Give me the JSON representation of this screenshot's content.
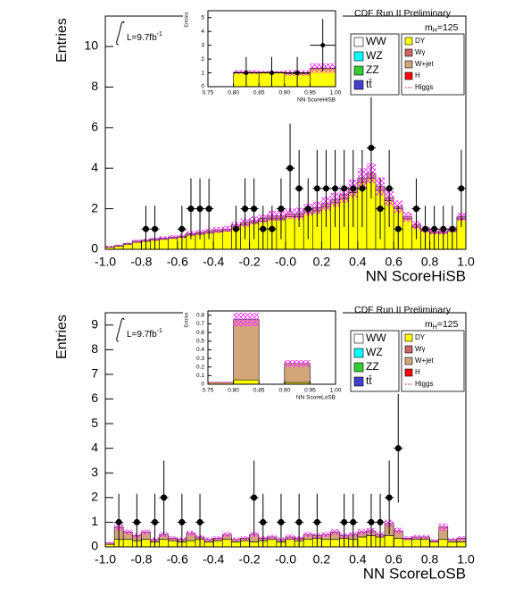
{
  "chart_data": [
    {
      "type": "histogram",
      "annotation": "CDF Run II Preliminary",
      "mass_label": {
        "base": "m",
        "sub": "H",
        "rest": "=125"
      },
      "lumi_label": {
        "text": "L=9.7fb",
        "sup": "-1"
      },
      "xlabel": "NN ScoreHiSB",
      "ylabel": "Entries",
      "xlim": [
        -1,
        1
      ],
      "ylim": [
        0,
        11.5
      ],
      "xticks": [
        {
          "value": -1,
          "label": "-1.0"
        },
        -0.8,
        -0.6,
        -0.4,
        -0.2,
        {
          "value": 0,
          "label": "-0.0"
        },
        0.2,
        0.4,
        0.6,
        0.8,
        {
          "value": 1,
          "label": "1.0"
        }
      ],
      "yticks": [
        0,
        2,
        4,
        6,
        8,
        10
      ],
      "bins": [
        -1,
        -0.95,
        -0.9,
        -0.85,
        -0.8,
        -0.75,
        -0.7,
        -0.65,
        -0.6,
        -0.55,
        -0.5,
        -0.45,
        -0.4,
        -0.35,
        -0.3,
        -0.25,
        -0.2,
        -0.15,
        -0.1,
        -0.05,
        0,
        0.05,
        0.1,
        0.15,
        0.2,
        0.25,
        0.3,
        0.35,
        0.4,
        0.45,
        0.5,
        0.55,
        0.6,
        0.65,
        0.7,
        0.75,
        0.8,
        0.85,
        0.9,
        0.95,
        1
      ],
      "series": [
        {
          "name": "DY",
          "color": "#ffff00",
          "values": [
            0.1,
            0.15,
            0.25,
            0.35,
            0.4,
            0.45,
            0.5,
            0.55,
            0.6,
            0.7,
            0.75,
            0.8,
            0.85,
            0.9,
            1.1,
            1.2,
            1.3,
            1.4,
            1.5,
            1.5,
            1.6,
            1.6,
            1.8,
            1.9,
            2.1,
            2.3,
            2.5,
            2.8,
            3.3,
            3.5,
            2.9,
            2.4,
            2.0,
            1.5,
            1.1,
            0.9,
            0.8,
            0.8,
            0.9,
            1.5
          ]
        },
        {
          "name": "W+jet",
          "color": "#d2a679",
          "values": [
            0.02,
            0.03,
            0.03,
            0.05,
            0.05,
            0.05,
            0.05,
            0.05,
            0.05,
            0.08,
            0.08,
            0.1,
            0.1,
            0.1,
            0.1,
            0.12,
            0.12,
            0.12,
            0.15,
            0.15,
            0.15,
            0.15,
            0.15,
            0.15,
            0.15,
            0.15,
            0.2,
            0.2,
            0.2,
            0.25,
            0.2,
            0.15,
            0.1,
            0.1,
            0.1,
            0.08,
            0.08,
            0.08,
            0.08,
            0.1
          ]
        }
      ],
      "uncertainty": [
        0.05,
        0.05,
        0.05,
        0.08,
        0.08,
        0.08,
        0.1,
        0.1,
        0.1,
        0.12,
        0.12,
        0.12,
        0.15,
        0.15,
        0.15,
        0.2,
        0.2,
        0.2,
        0.25,
        0.25,
        0.25,
        0.3,
        0.3,
        0.3,
        0.35,
        0.35,
        0.4,
        0.45,
        0.5,
        0.5,
        0.45,
        0.4,
        0.3,
        0.25,
        0.2,
        0.15,
        0.15,
        0.15,
        0.15,
        0.2
      ],
      "data": {
        "values": [
          null,
          null,
          null,
          null,
          1,
          1,
          null,
          null,
          1,
          2,
          2,
          2,
          null,
          null,
          1,
          2,
          2,
          1,
          1,
          2,
          4,
          3,
          2,
          3,
          3,
          3,
          3,
          3,
          3,
          5,
          2,
          3,
          1,
          null,
          2,
          1,
          1,
          1,
          1,
          3
        ],
        "errors": [
          null,
          null,
          null,
          null,
          1.15,
          1.15,
          null,
          null,
          1.15,
          1.5,
          1.5,
          1.5,
          null,
          null,
          1.15,
          1.5,
          1.5,
          1.15,
          1.15,
          1.5,
          2.2,
          1.9,
          1.5,
          1.9,
          1.9,
          1.9,
          1.9,
          1.9,
          1.9,
          2.5,
          1.5,
          1.9,
          1.15,
          null,
          1.5,
          1.15,
          1.15,
          1.15,
          1.15,
          1.9
        ]
      },
      "legend": [
        {
          "name": "WW",
          "color": "#ffffff"
        },
        {
          "name": "WZ",
          "color": "#00ffff"
        },
        {
          "name": "ZZ",
          "color": "#33cc33"
        },
        {
          "name": "tt̄",
          "color": "#4040cc"
        },
        {
          "name": "DY",
          "color": "#ffff00"
        },
        {
          "name": "Wγ",
          "color": "#cc6666"
        },
        {
          "name": "W+jet",
          "color": "#d2a679"
        },
        {
          "name": "H",
          "color": "#ff0000"
        },
        {
          "name": "Higgs",
          "color": "#ff0000",
          "style": "dotted-line"
        }
      ]
    },
    {
      "type": "histogram",
      "inset": true,
      "xlabel": "NN ScoreHiSB",
      "ylabel": "Entries",
      "xlim": [
        0.75,
        1
      ],
      "ylim": [
        0,
        5.5
      ],
      "xticks": [
        0.75,
        {
          "value": 0.8,
          "label": "0.80"
        },
        0.85,
        {
          "value": 0.9,
          "label": "0.90"
        },
        0.95,
        {
          "value": 1,
          "label": "1.00"
        }
      ],
      "yticks": [
        0,
        1,
        2,
        3,
        4,
        5
      ],
      "bins": [
        0.75,
        0.8,
        0.85,
        0.9,
        0.95,
        1
      ],
      "series": [
        {
          "name": "DY",
          "color": "#ffff00",
          "values": [
            0,
            1.0,
            1.0,
            0.95,
            1.3
          ]
        },
        {
          "name": "W+jet",
          "color": "#d2a679",
          "values": [
            0,
            0.05,
            0.05,
            0.05,
            0.05
          ]
        }
      ],
      "uncertainty": [
        0,
        0.15,
        0.1,
        0.2,
        0.35
      ],
      "data": {
        "values": [
          null,
          1,
          1,
          1,
          3
        ],
        "errors": [
          null,
          1.15,
          1.15,
          1.15,
          1.9
        ]
      }
    },
    {
      "type": "histogram",
      "annotation": "CDF Run II Preliminary",
      "mass_label": {
        "base": "m",
        "sub": "H",
        "rest": "=125"
      },
      "lumi_label": {
        "text": "L=9.7fb",
        "sup": "-1"
      },
      "xlabel": "NN ScoreLoSB",
      "ylabel": "Entries",
      "xlim": [
        -1,
        1
      ],
      "ylim": [
        0,
        9.5
      ],
      "xticks": [
        {
          "value": -1,
          "label": "-1.0"
        },
        -0.8,
        -0.6,
        -0.4,
        -0.2,
        {
          "value": 0,
          "label": "-0.0"
        },
        0.2,
        0.4,
        0.6,
        0.8,
        {
          "value": 1,
          "label": "1.0"
        }
      ],
      "yticks": [
        0,
        1,
        2,
        3,
        4,
        5,
        6,
        7,
        8,
        9
      ],
      "bins": [
        -1,
        -0.95,
        -0.9,
        -0.85,
        -0.8,
        -0.75,
        -0.7,
        -0.65,
        -0.6,
        -0.55,
        -0.5,
        -0.45,
        -0.4,
        -0.35,
        -0.3,
        -0.25,
        -0.2,
        -0.15,
        -0.1,
        -0.05,
        0,
        0.05,
        0.1,
        0.15,
        0.2,
        0.25,
        0.3,
        0.35,
        0.4,
        0.45,
        0.5,
        0.55,
        0.6,
        0.65,
        0.7,
        0.75,
        0.8,
        0.85,
        0.9,
        0.95,
        1
      ],
      "series": [
        {
          "name": "DY",
          "color": "#ffff00",
          "values": [
            0.1,
            0.3,
            0.3,
            0.25,
            0.3,
            0.2,
            0.3,
            0.25,
            0.2,
            0.25,
            0.3,
            0.2,
            0.25,
            0.3,
            0.2,
            0.25,
            0.2,
            0.25,
            0.3,
            0.2,
            0.3,
            0.25,
            0.3,
            0.35,
            0.3,
            0.3,
            0.35,
            0.3,
            0.4,
            0.45,
            0.4,
            0.45,
            0.35,
            0.3,
            0.3,
            0.3,
            0.2,
            0.3,
            0.2,
            0.2
          ]
        },
        {
          "name": "W+jet",
          "color": "#d2a679",
          "values": [
            0.05,
            0.5,
            0.3,
            0.2,
            0.3,
            0.1,
            0.2,
            0.1,
            0.1,
            0.3,
            0.1,
            0.1,
            0.1,
            0.2,
            0.1,
            0.1,
            0.3,
            0.1,
            0.1,
            0.1,
            0.1,
            0.1,
            0.2,
            0.1,
            0.2,
            0.3,
            0.1,
            0.2,
            0.2,
            0.2,
            0.1,
            0.5,
            0.3,
            0.05,
            0.1,
            0.1,
            0.05,
            0.5,
            0.1,
            0.15
          ]
        }
      ],
      "uncertainty": [
        0.05,
        0.15,
        0.1,
        0.1,
        0.1,
        0.08,
        0.1,
        0.08,
        0.08,
        0.1,
        0.08,
        0.08,
        0.08,
        0.1,
        0.08,
        0.08,
        0.1,
        0.08,
        0.08,
        0.08,
        0.1,
        0.08,
        0.1,
        0.1,
        0.1,
        0.12,
        0.1,
        0.1,
        0.12,
        0.12,
        0.1,
        0.15,
        0.12,
        0.08,
        0.08,
        0.08,
        0.06,
        0.15,
        0.06,
        0.08
      ],
      "data": {
        "values": [
          null,
          1,
          null,
          1,
          null,
          1,
          2,
          null,
          1,
          null,
          1,
          null,
          null,
          null,
          null,
          null,
          2,
          1,
          null,
          1,
          null,
          1,
          null,
          1,
          null,
          null,
          1,
          1,
          null,
          1,
          1,
          2,
          4,
          null,
          null,
          null,
          null,
          null,
          null,
          null
        ],
        "errors": [
          null,
          1.15,
          null,
          1.15,
          null,
          1.15,
          1.5,
          null,
          1.15,
          null,
          1.15,
          null,
          null,
          null,
          null,
          null,
          1.5,
          1.15,
          null,
          1.15,
          null,
          1.15,
          null,
          1.15,
          null,
          null,
          1.15,
          1.15,
          null,
          1.15,
          1.15,
          1.5,
          2.2,
          null,
          null,
          null,
          null,
          null,
          null,
          null
        ]
      },
      "legend": [
        {
          "name": "WW",
          "color": "#ffffff"
        },
        {
          "name": "WZ",
          "color": "#00ffff"
        },
        {
          "name": "ZZ",
          "color": "#33cc33"
        },
        {
          "name": "tt̄",
          "color": "#4040cc"
        },
        {
          "name": "DY",
          "color": "#ffff00"
        },
        {
          "name": "Wγ",
          "color": "#cc6666"
        },
        {
          "name": "W+jet",
          "color": "#d2a679"
        },
        {
          "name": "H",
          "color": "#ff0000"
        },
        {
          "name": "Higgs",
          "color": "#ff0000",
          "style": "dotted-line"
        }
      ]
    },
    {
      "type": "histogram",
      "inset": true,
      "xlabel": "NN ScoreLoSB",
      "ylabel": "Entries",
      "xlim": [
        0.75,
        1
      ],
      "ylim": [
        0,
        0.85
      ],
      "xticks": [
        0.75,
        {
          "value": 0.8,
          "label": "0.80"
        },
        0.85,
        {
          "value": 0.9,
          "label": "0.90"
        },
        0.95,
        {
          "value": 1,
          "label": "1.00"
        }
      ],
      "yticks": [
        0,
        0.1,
        0.2,
        0.3,
        0.4,
        0.5,
        0.6,
        0.7,
        0.8
      ],
      "bins": [
        0.75,
        0.8,
        0.85,
        0.9,
        0.95,
        1
      ],
      "series": [
        {
          "name": "DY",
          "color": "#ffff00",
          "values": [
            0.02,
            0.05,
            0,
            0.02,
            0
          ]
        },
        {
          "name": "W+jet",
          "color": "#d2a679",
          "values": [
            0,
            0.7,
            0,
            0.22,
            0
          ]
        }
      ],
      "uncertainty": [
        0.01,
        0.08,
        0,
        0.04,
        0
      ]
    }
  ]
}
